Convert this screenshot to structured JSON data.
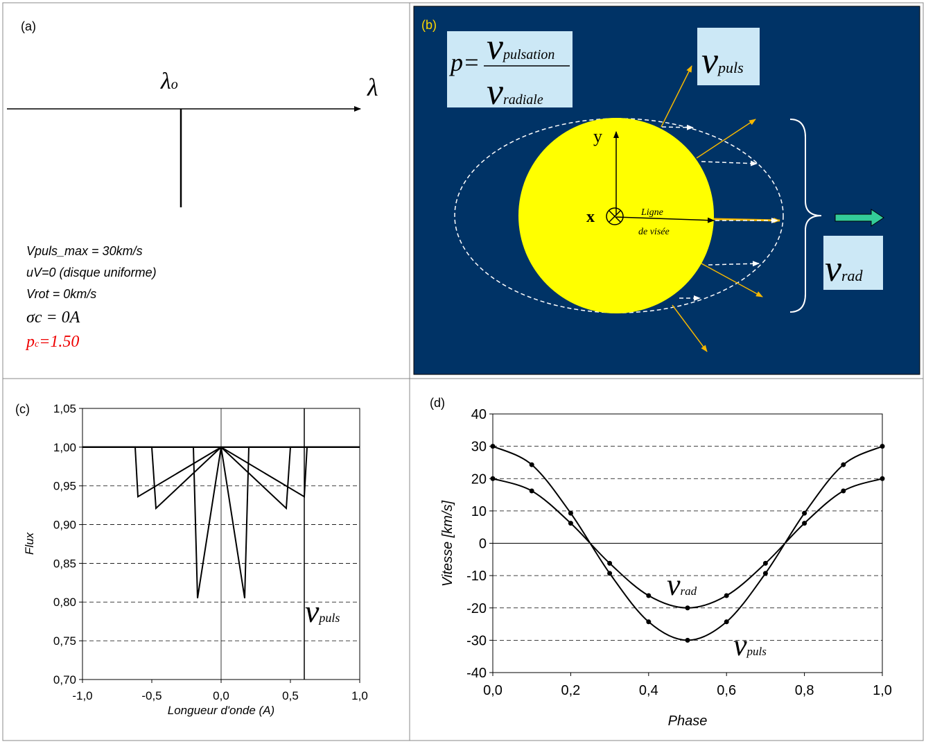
{
  "panel_a": {
    "label": "(a)",
    "lambda": "λ",
    "lambda0": "λ",
    "lambda0_sub": "o",
    "params": [
      "Vpuls_max = 30km/s",
      "uV=0 (disque uniforme)",
      "Vrot = 0km/s"
    ],
    "sigma": "σc = 0A",
    "p": "p",
    "p_sub": "c",
    "p_value": "=1.50"
  },
  "panel_b": {
    "label": "(b)",
    "formula": {
      "p": "p=",
      "num": "v",
      "num_sub": "pulsation",
      "den": "v",
      "den_sub": "radiale"
    },
    "vpuls": {
      "text": "v",
      "sub": "puls"
    },
    "vrad": {
      "text": "v",
      "sub": "rad"
    },
    "y_axis": "y",
    "x_axis": "x",
    "line_of_sight": [
      "Ligne",
      "de visée"
    ]
  },
  "chart_data": [
    {
      "type": "line",
      "label": "(c)",
      "xlabel": "Longueur d'onde (A)",
      "ylabel": "Flux",
      "xlim": [
        -1,
        1
      ],
      "ylim": [
        0.7,
        1.05
      ],
      "xticks": [
        {
          "value": -1,
          "label": "-1,0"
        },
        {
          "value": -0.5,
          "label": "-0,5"
        },
        {
          "value": 0,
          "label": "0,0"
        },
        {
          "value": 0.5,
          "label": "0,5"
        },
        {
          "value": 1,
          "label": "1,0"
        }
      ],
      "yticks": [
        {
          "value": 0.7,
          "label": "0,70"
        },
        {
          "value": 0.75,
          "label": "0,75"
        },
        {
          "value": 0.8,
          "label": "0,80"
        },
        {
          "value": 0.85,
          "label": "0,85"
        },
        {
          "value": 0.9,
          "label": "0,90"
        },
        {
          "value": 0.95,
          "label": "0,95"
        },
        {
          "value": 1.0,
          "label": "1,00"
        },
        {
          "value": 1.05,
          "label": "1,05"
        }
      ],
      "grid": true,
      "vline": 0.6,
      "annotations": [
        {
          "text": "v",
          "sub": "puls"
        }
      ],
      "series": [
        {
          "color": "#000000",
          "x": [
            -1,
            -0.62,
            -0.6,
            0,
            1
          ],
          "values": [
            1,
            1,
            0.936,
            1,
            1
          ]
        },
        {
          "color": "#000000",
          "x": [
            -1,
            0,
            0.6,
            0.62,
            1
          ],
          "values": [
            1,
            1,
            0.936,
            1,
            1
          ]
        },
        {
          "color": "#000000",
          "x": [
            -1,
            -0.5,
            -0.47,
            0,
            1
          ],
          "values": [
            1,
            1,
            0.921,
            1,
            1
          ]
        },
        {
          "color": "#000000",
          "x": [
            -1,
            0,
            0.47,
            0.5,
            1
          ],
          "values": [
            1,
            1,
            0.921,
            1,
            1
          ]
        },
        {
          "color": "#000000",
          "x": [
            -1,
            -0.2,
            -0.17,
            0,
            1
          ],
          "values": [
            1,
            1,
            0.805,
            1,
            1
          ]
        },
        {
          "color": "#000000",
          "x": [
            -1,
            0,
            0.17,
            0.2,
            1
          ],
          "values": [
            1,
            1,
            0.805,
            1,
            1
          ]
        }
      ]
    },
    {
      "type": "line",
      "label": "(d)",
      "xlabel": "Phase",
      "ylabel": "Vitesse [km/s]",
      "xlim": [
        0,
        1
      ],
      "ylim": [
        -40,
        40
      ],
      "xticks": [
        {
          "value": 0,
          "label": "0,0"
        },
        {
          "value": 0.2,
          "label": "0,2"
        },
        {
          "value": 0.4,
          "label": "0,4"
        },
        {
          "value": 0.6,
          "label": "0,6"
        },
        {
          "value": 0.8,
          "label": "0,8"
        },
        {
          "value": 1,
          "label": "1,0"
        }
      ],
      "yticks": [
        -40,
        -30,
        -20,
        -10,
        0,
        10,
        20,
        30,
        40
      ],
      "grid": true,
      "smooth": true,
      "markers": true,
      "annotations": [
        {
          "text": "v",
          "sub": "rad"
        },
        {
          "text": "v",
          "sub": "puls"
        }
      ],
      "x": [
        0,
        0.1,
        0.2,
        0.3,
        0.4,
        0.5,
        0.6,
        0.7,
        0.8,
        0.9,
        1
      ],
      "series": [
        {
          "color": "#000000",
          "values": [
            30,
            24.3,
            9.3,
            -9.3,
            -24.3,
            -30,
            -24.3,
            -9.3,
            9.3,
            24.3,
            30
          ]
        },
        {
          "color": "#000000",
          "values": [
            20,
            16.2,
            6.2,
            -6.2,
            -16.2,
            -20,
            -16.2,
            -6.2,
            6.2,
            16.2,
            20
          ]
        }
      ]
    }
  ]
}
